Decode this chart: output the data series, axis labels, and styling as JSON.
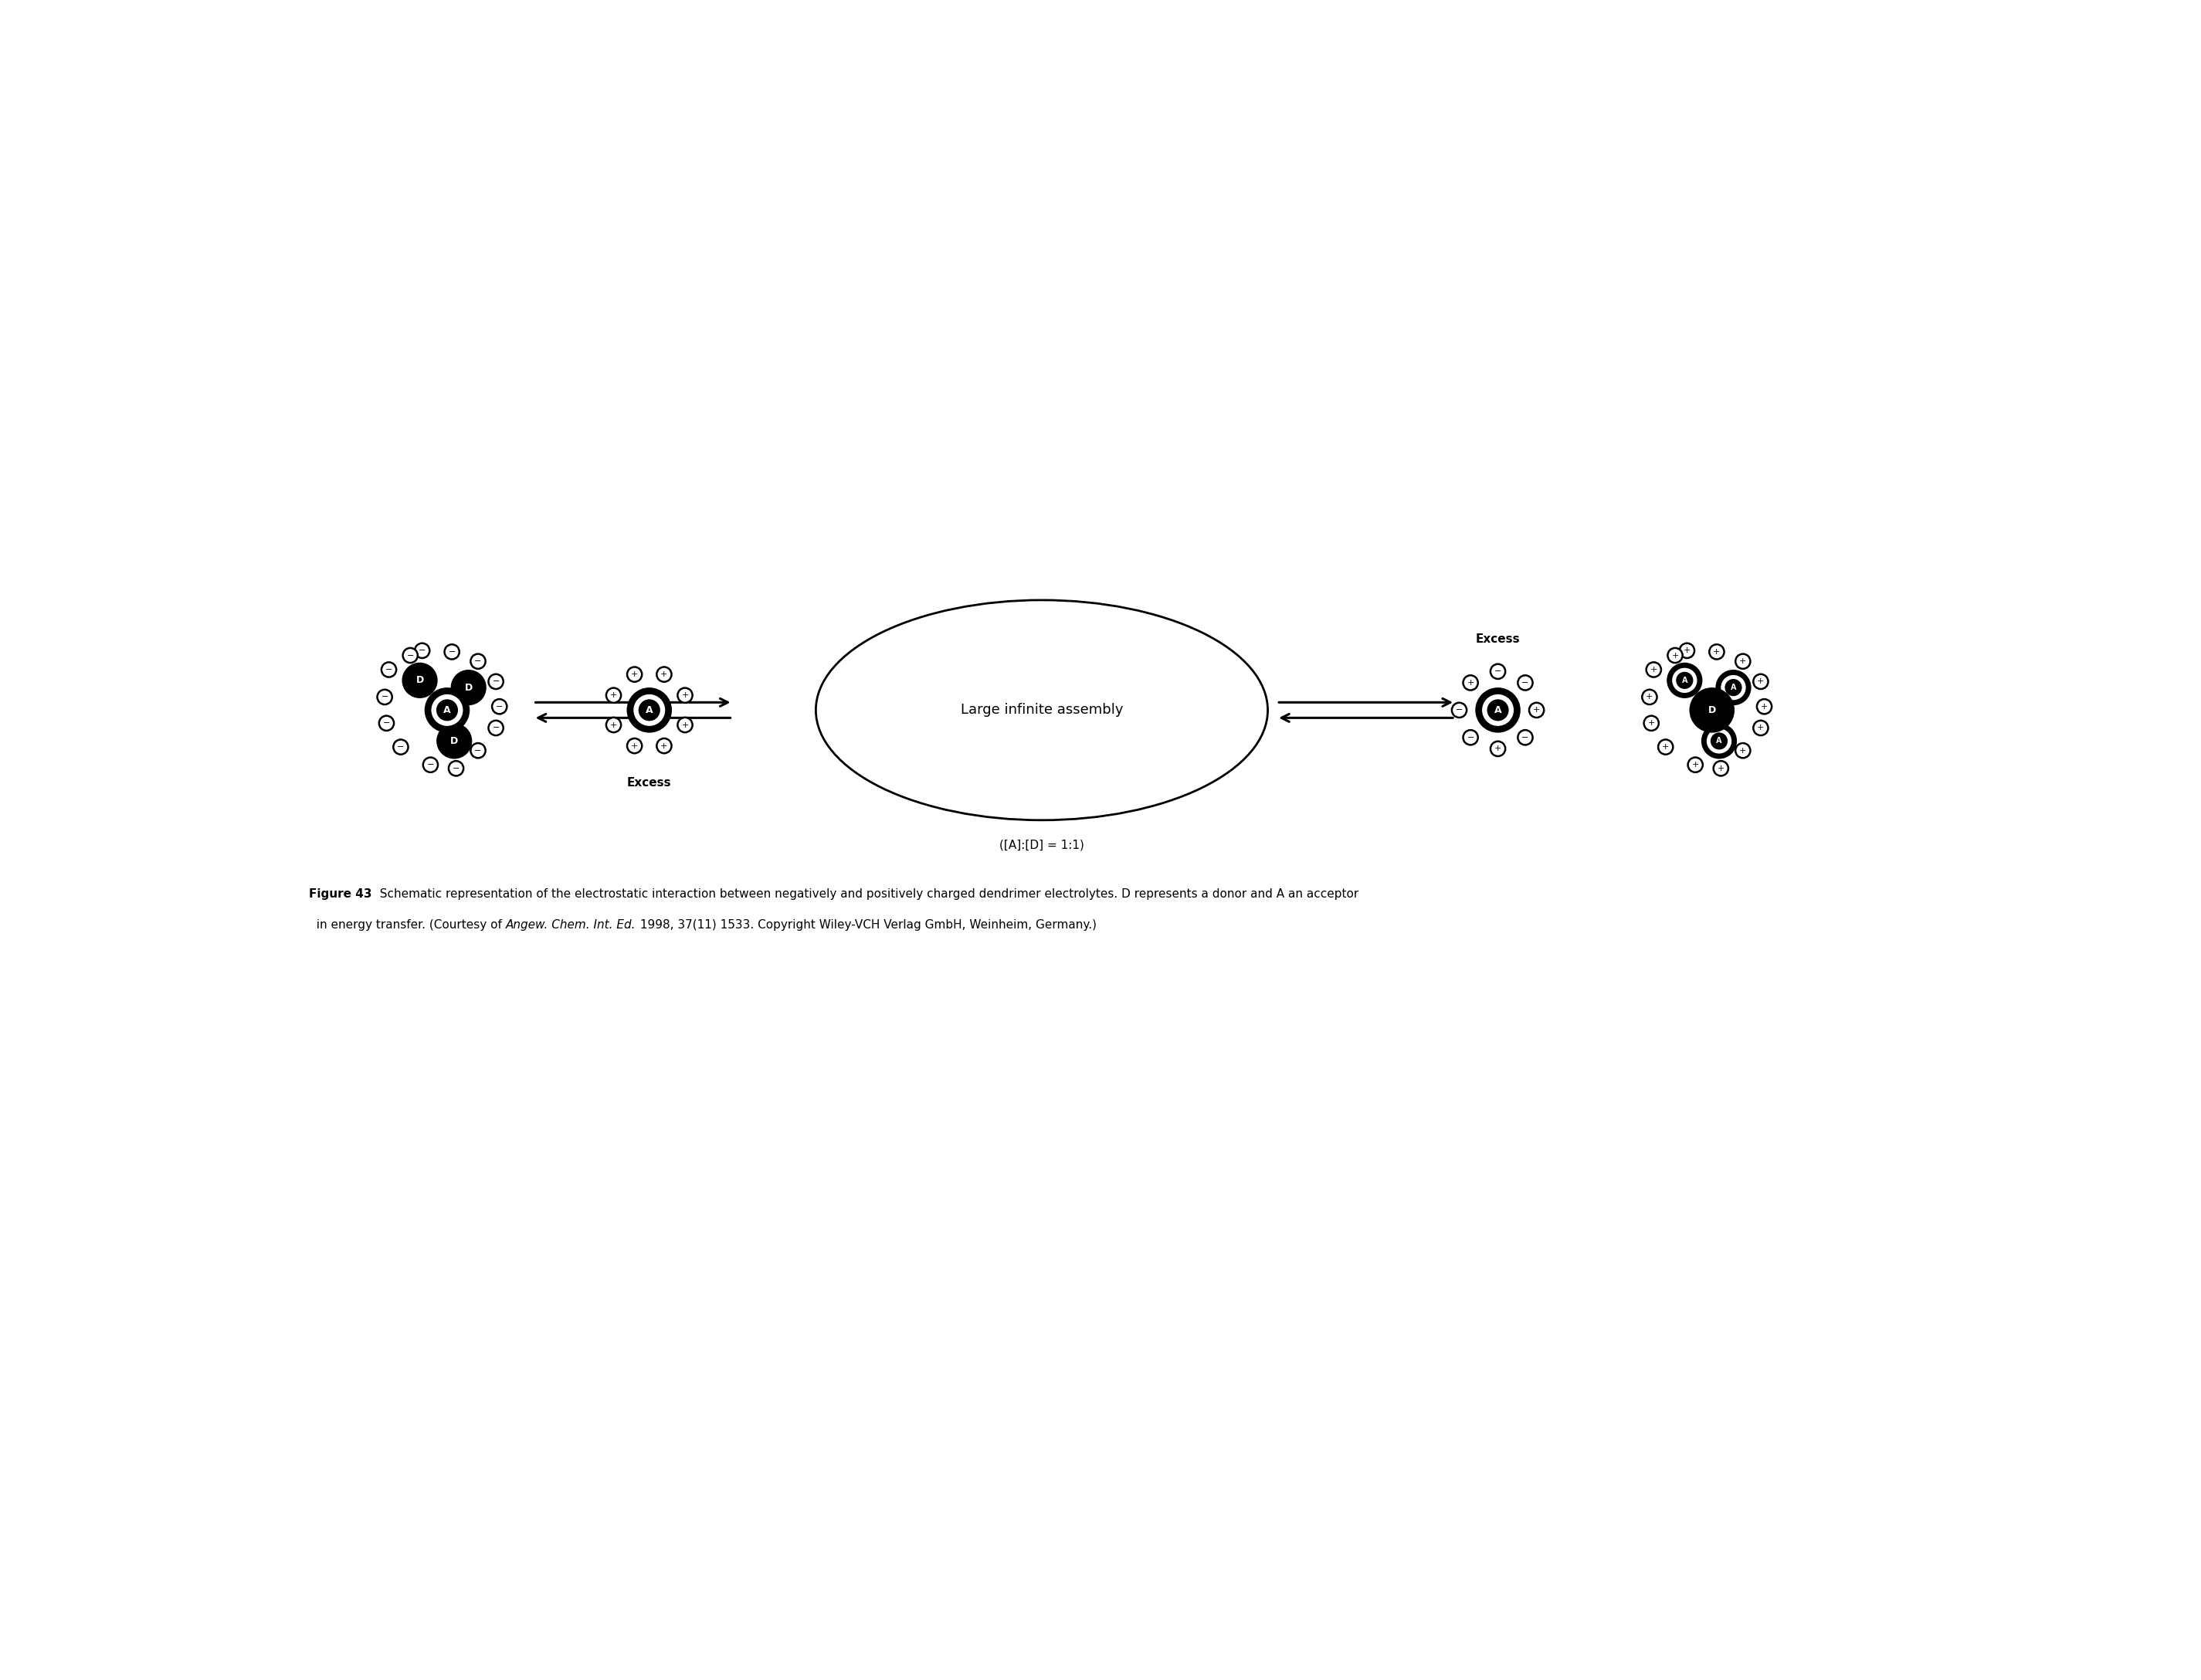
{
  "bg_color": "#ffffff",
  "black": "#000000",
  "white": "#ffffff",
  "ellipse_label": "Large infinite assembly",
  "ratio_label": "([A]:[D] = 1:1)",
  "excess_top": "Excess",
  "excess_bottom": "Excess",
  "fig_label_bold": "Figure 43",
  "caption_line1_normal": "  Schematic representation of the electrostatic interaction between negatively and positively charged dendrimer electrolytes. D represents a donor and A an acceptor",
  "caption_line2_pre": "  in energy transfer. (Courtesy of ",
  "caption_line2_italic": "Angew. Chem. Int. Ed.",
  "caption_line2_post": " 1998, 37(11) 1533. Copyright Wiley-VCH Verlag GmbH, Weinheim, Germany.)"
}
